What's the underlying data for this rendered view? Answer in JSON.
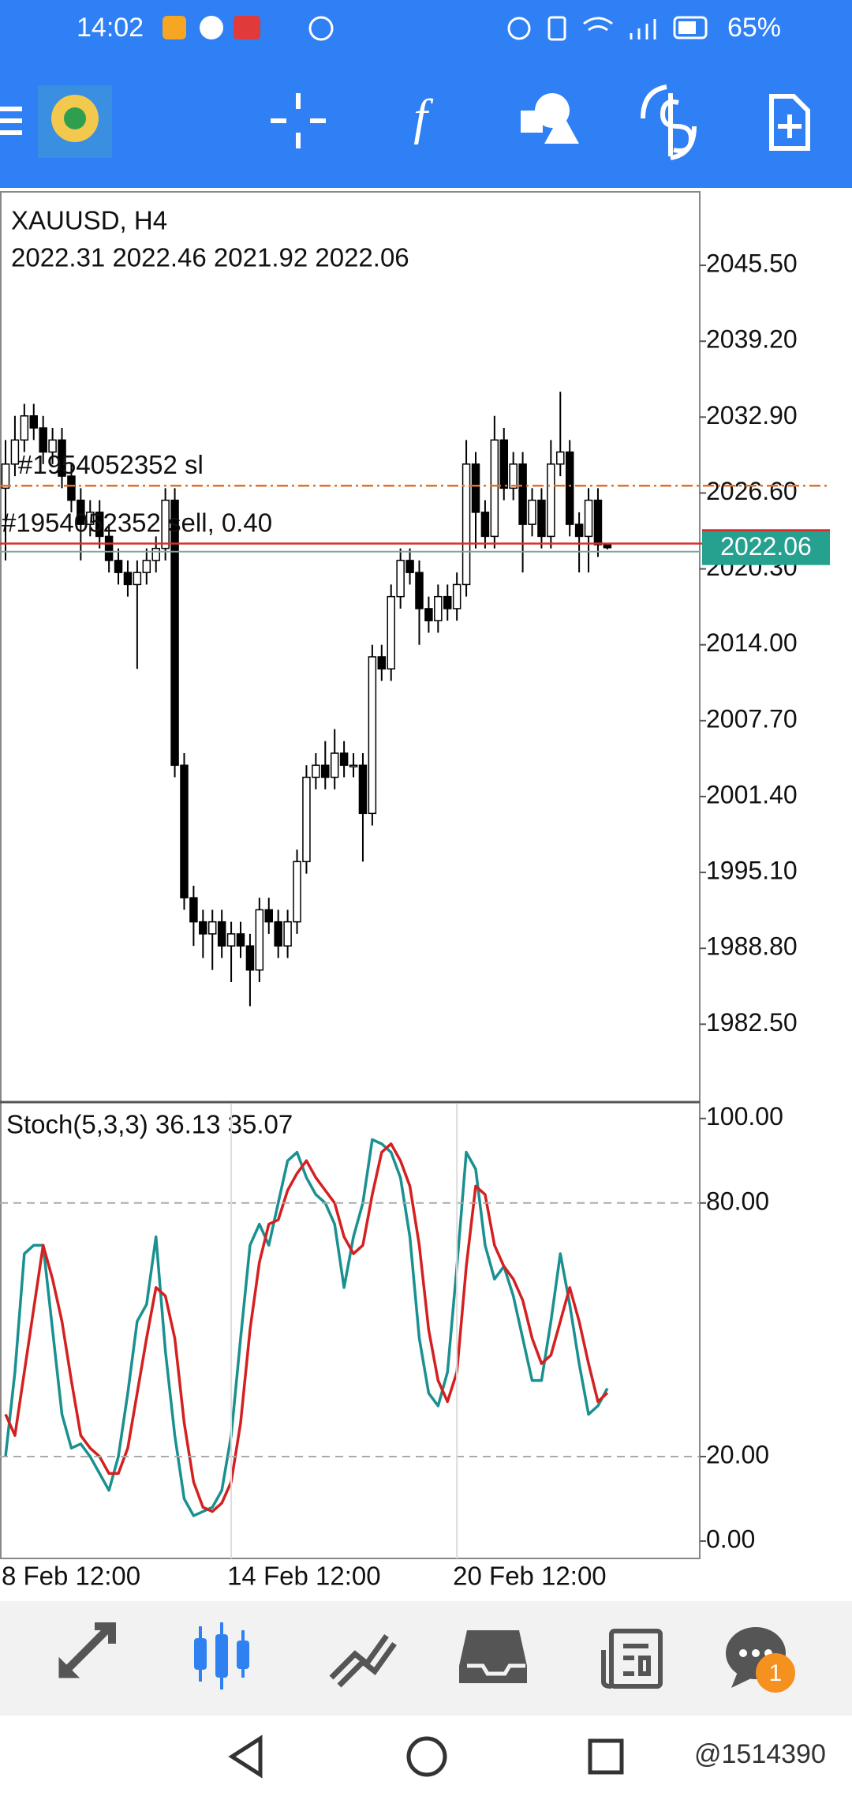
{
  "status_bar": {
    "time": "14:02",
    "battery": "65%"
  },
  "chart_data": [
    {
      "type": "candlestick",
      "title": "XAUUSD, H4",
      "subtitle": "2022.31 2022.46 2021.92 2022.06",
      "open": [
        2027,
        2029,
        2031,
        2033,
        2032,
        2030,
        2031,
        2028,
        2026,
        2024,
        2025,
        2023,
        2021,
        2020,
        2019,
        2020,
        2021,
        2022,
        2026,
        2004,
        1993,
        1991,
        1990,
        1991,
        1989,
        1990,
        1989,
        1987,
        1992,
        1991,
        1989,
        1991,
        1996,
        2003,
        2004,
        2003,
        2005,
        2004,
        2004,
        2000,
        2013,
        2012,
        2018,
        2021,
        2020,
        2017,
        2016,
        2018,
        2017,
        2019,
        2029,
        2025,
        2023,
        2031,
        2027,
        2029,
        2024,
        2026,
        2023,
        2029,
        2030,
        2024,
        2023,
        2026,
        2022.31
      ],
      "high": [
        2031,
        2033,
        2034,
        2034,
        2033,
        2032,
        2032,
        2029,
        2027,
        2026,
        2026,
        2024,
        2022,
        2021,
        2021,
        2022,
        2023,
        2027,
        2027,
        2005,
        1994,
        1992,
        1992,
        1992,
        1991,
        1991,
        1990,
        1993,
        1993,
        1992,
        1992,
        1997,
        2004,
        2005,
        2006,
        2007,
        2006,
        2005,
        2005,
        2014,
        2014,
        2019,
        2022,
        2022,
        2021,
        2018,
        2019,
        2019,
        2020,
        2031,
        2030,
        2026,
        2033,
        2032,
        2030,
        2030,
        2027,
        2027,
        2031,
        2035,
        2031,
        2025,
        2027,
        2027,
        2022.46
      ],
      "low": [
        2021,
        2028,
        2030,
        2031,
        2029,
        2029,
        2027,
        2025,
        2021,
        2023,
        2022,
        2020,
        2019,
        2018,
        2012,
        2019,
        2020,
        2021,
        2003,
        1992,
        1989,
        1988,
        1987,
        1988,
        1986,
        1988,
        1984,
        1986,
        1990,
        1988,
        1988,
        1990,
        1995,
        2002,
        2002,
        2002,
        2003,
        2003,
        1996,
        1999,
        2011,
        2011,
        2017,
        2019,
        2014,
        2015,
        2015,
        2016,
        2016,
        2018,
        2022,
        2022,
        2022,
        2026,
        2026,
        2020,
        2023,
        2022,
        2022,
        2028,
        2023,
        2020,
        2020,
        2021.3,
        2021.92
      ],
      "close": [
        2029,
        2031,
        2033,
        2032,
        2030,
        2031,
        2028,
        2026,
        2024,
        2025,
        2023,
        2021,
        2020,
        2019,
        2020,
        2021,
        2022,
        2026,
        2004,
        1993,
        1991,
        1990,
        1991,
        1989,
        1990,
        1989,
        1987,
        1992,
        1991,
        1989,
        1991,
        1996,
        2003,
        2004,
        2003,
        2005,
        2004,
        2004,
        2000,
        2013,
        2012,
        2018,
        2021,
        2020,
        2017,
        2016,
        2018,
        2017,
        2019,
        2029,
        2025,
        2023,
        2031,
        2027,
        2029,
        2024,
        2026,
        2023,
        2029,
        2030,
        2024,
        2023,
        2026,
        2022.31,
        2022.06
      ],
      "color_up": "#ffffff",
      "color_down": "#000000",
      "ylim": [
        1976.1,
        2051.6
      ],
      "yticks": [
        {
          "value": 2045.5,
          "label": "2045.50"
        },
        {
          "value": 2039.2,
          "label": "2039.20"
        },
        {
          "value": 2032.9,
          "label": "2032.90"
        },
        {
          "value": 2026.6,
          "label": "2026.60"
        },
        {
          "value": 2020.3,
          "label": "2020.30"
        },
        {
          "value": 2014,
          "label": "2014.00"
        },
        {
          "value": 2007.7,
          "label": "2007.70"
        },
        {
          "value": 2001.4,
          "label": "2001.40"
        },
        {
          "value": 1995.1,
          "label": "1995.10"
        },
        {
          "value": 1988.8,
          "label": "1988.80"
        },
        {
          "value": 1982.5,
          "label": "1982.50"
        }
      ],
      "price_label": {
        "value": 2022.06,
        "color": "#26a08f"
      },
      "orders": [
        {
          "label": "#1954052352 sl",
          "value": 2027.2,
          "color": "#e0702a"
        },
        {
          "label": "#1954052352 sell, 0.40",
          "value": 2022.4,
          "color": "#d83030"
        }
      ]
    },
    {
      "type": "line",
      "title": "Stoch(5,3,3) 36.13 35.07",
      "categories": [
        "8 Feb 12:00",
        null,
        null,
        null,
        null,
        null,
        null,
        null,
        null,
        null,
        null,
        null,
        null,
        null,
        null,
        null,
        null,
        null,
        null,
        null,
        null,
        null,
        null,
        null,
        "14 Feb 12:00",
        null,
        null,
        null,
        null,
        null,
        null,
        null,
        null,
        null,
        null,
        null,
        null,
        null,
        null,
        null,
        null,
        null,
        null,
        null,
        null,
        null,
        null,
        null,
        "20 Feb 12:00",
        null,
        null,
        null,
        null,
        null,
        null,
        null,
        null,
        null,
        null,
        null,
        null,
        null,
        null,
        null,
        null
      ],
      "series": [
        {
          "name": "Main",
          "color": "#1a9090",
          "values": [
            20,
            40,
            68,
            70,
            70,
            50,
            30,
            22,
            23,
            20,
            16,
            12,
            20,
            35,
            52,
            56,
            72,
            45,
            25,
            10,
            6,
            7,
            8,
            12,
            25,
            48,
            70,
            75,
            70,
            80,
            90,
            92,
            86,
            82,
            80,
            75,
            60,
            72,
            80,
            95,
            94,
            92,
            86,
            72,
            48,
            35,
            32,
            40,
            65,
            92,
            88,
            70,
            62,
            65,
            58,
            48,
            38,
            38,
            52,
            68,
            56,
            42,
            30,
            32,
            36.13
          ]
        },
        {
          "name": "Signal",
          "color": "#d42020",
          "values": [
            30,
            25,
            40,
            55,
            70,
            62,
            52,
            38,
            25,
            22,
            20,
            16,
            16,
            22,
            35,
            48,
            60,
            58,
            48,
            28,
            14,
            8,
            7,
            9,
            14,
            28,
            50,
            66,
            75,
            76,
            83,
            87,
            90,
            86,
            83,
            80,
            72,
            68,
            70,
            82,
            92,
            94,
            90,
            84,
            70,
            50,
            38,
            33,
            40,
            65,
            84,
            82,
            70,
            65,
            62,
            57,
            48,
            42,
            44,
            52,
            60,
            52,
            42,
            33,
            35.07
          ]
        }
      ],
      "ylim": [
        -4.1,
        103.5
      ],
      "yticks": [
        {
          "value": 100,
          "label": "100.00"
        },
        {
          "value": 80,
          "label": "80.00"
        },
        {
          "value": 20,
          "label": "20.00"
        },
        {
          "value": 0,
          "label": "0.00"
        }
      ],
      "levels": [
        80,
        20
      ]
    }
  ],
  "bottom_nav": {
    "badge": "1"
  },
  "watermark": "@1514390"
}
